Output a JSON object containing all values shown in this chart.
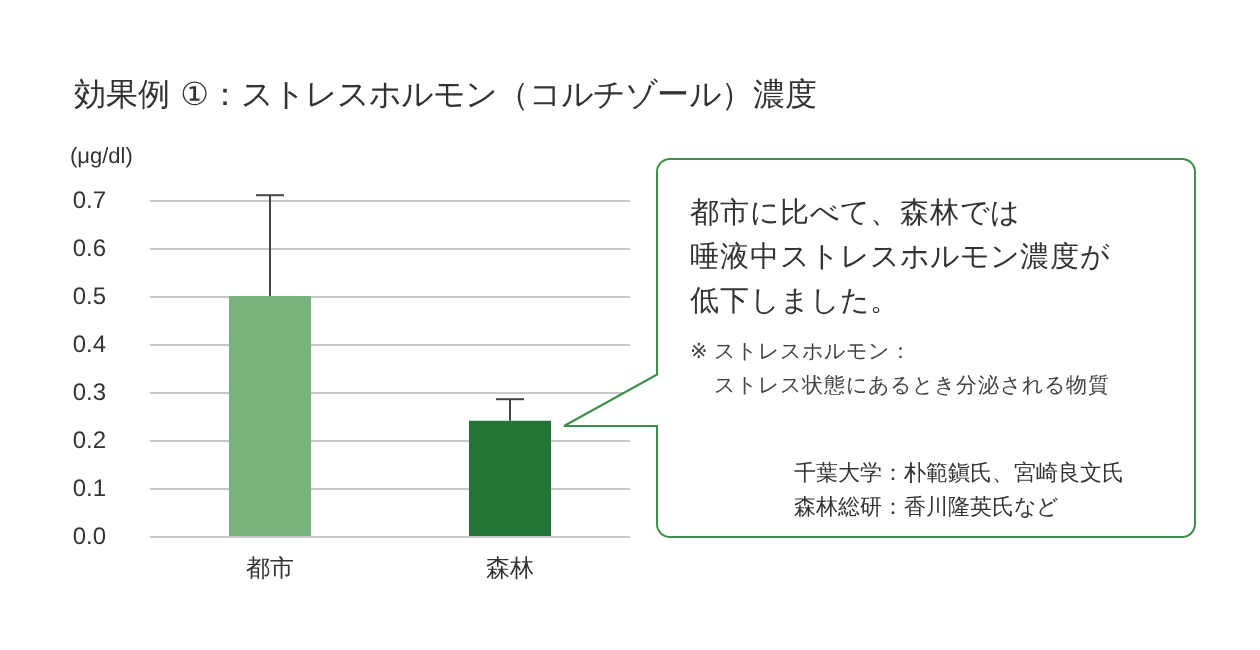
{
  "chart_data": {
    "type": "bar",
    "title": "効果例 ①：ストレスホルモン（コルチゾール）濃度",
    "ylabel": "(μg/dl)",
    "categories": [
      "都市",
      "森林"
    ],
    "values": [
      0.5,
      0.24
    ],
    "colors": [
      "#77b37a",
      "#237535"
    ],
    "errors": [
      [
        0.5,
        0.71
      ],
      [
        0.24,
        0.285
      ]
    ],
    "ylim": [
      0,
      0.7
    ],
    "yticks": [
      {
        "value": 0,
        "label": "0.0"
      },
      0.1,
      0.2,
      0.3,
      0.4,
      0.5,
      0.6,
      0.7
    ],
    "grid": "y",
    "annotations": [
      "都市に比べて、森林では",
      "唾液中ストレスホルモン濃度が",
      "低下しました。",
      "※ ストレスホルモン：",
      "ストレス状態にあるとき分泌される物質",
      "千葉大学：朴範鎭氏、宮崎良文氏",
      "森林総研：香川隆英氏など"
    ]
  }
}
